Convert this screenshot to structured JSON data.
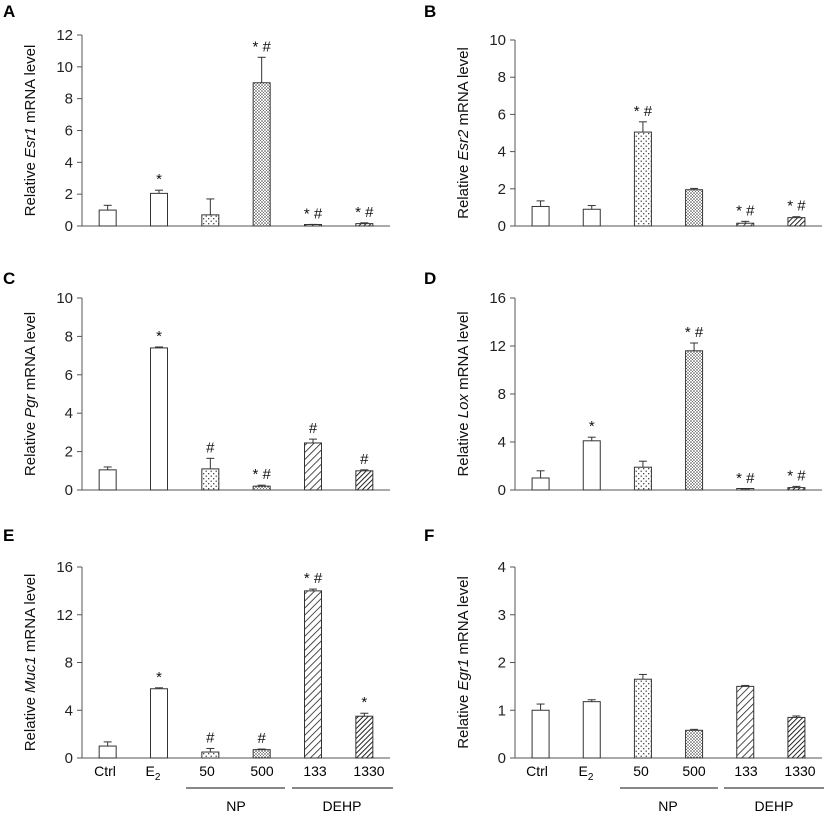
{
  "figure": {
    "group_labels": {
      "ctrl": "Ctrl",
      "e2_base": "E",
      "e2_sub": "2",
      "np": "NP",
      "dehp": "DEHP",
      "np_doses": [
        "50",
        "500"
      ],
      "dehp_doses": [
        "133",
        "1330"
      ]
    }
  },
  "chart_data": [
    {
      "panel": "A",
      "type": "bar",
      "ylabel_pre": "Relative ",
      "ylabel_gene": "Esr1",
      "ylabel_post": " mRNA level",
      "ylim": [
        0,
        12
      ],
      "yticks": [
        "0",
        "2",
        "4",
        "6",
        "8",
        "10",
        "12"
      ],
      "values": [
        1.0,
        2.05,
        0.7,
        9.0,
        0.05,
        0.15
      ],
      "errors": [
        0.3,
        0.2,
        1.0,
        1.6,
        0.05,
        0.05
      ],
      "annotations": [
        "",
        "*",
        "",
        "* #",
        "* #",
        "* #"
      ]
    },
    {
      "panel": "B",
      "type": "bar",
      "ylabel_pre": "Relative ",
      "ylabel_gene": "Esr2",
      "ylabel_post": " mRNA level",
      "ylim": [
        0,
        10
      ],
      "yticks": [
        "0",
        "2",
        "4",
        "6",
        "8",
        "10"
      ],
      "values": [
        1.05,
        0.9,
        5.05,
        1.95,
        0.15,
        0.45
      ],
      "errors": [
        0.3,
        0.2,
        0.55,
        0.07,
        0.1,
        0.05
      ],
      "annotations": [
        "",
        "",
        "* #",
        "",
        "* #",
        "* #"
      ]
    },
    {
      "panel": "C",
      "type": "bar",
      "ylabel_pre": "Relative ",
      "ylabel_gene": "Pgr",
      "ylabel_post": " mRNA level",
      "ylim": [
        0,
        10
      ],
      "yticks": [
        "0",
        "2",
        "4",
        "6",
        "8",
        "10"
      ],
      "values": [
        1.05,
        7.4,
        1.1,
        0.2,
        2.45,
        1.0
      ],
      "errors": [
        0.15,
        0.05,
        0.55,
        0.05,
        0.2,
        0.05
      ],
      "annotations": [
        "",
        "*",
        "#",
        "* #",
        "#",
        "#"
      ]
    },
    {
      "panel": "D",
      "type": "bar",
      "ylabel_pre": "Relative ",
      "ylabel_gene": "Lox",
      "ylabel_post": " mRNA level",
      "ylim": [
        0,
        16
      ],
      "yticks": [
        "0",
        "4",
        "8",
        "12",
        "16"
      ],
      "values": [
        1.0,
        4.1,
        1.9,
        11.6,
        0.05,
        0.2
      ],
      "errors": [
        0.6,
        0.3,
        0.5,
        0.65,
        0.05,
        0.1
      ],
      "annotations": [
        "",
        "*",
        "",
        "* #",
        "* #",
        "* #"
      ]
    },
    {
      "panel": "E",
      "type": "bar",
      "ylabel_pre": "Relative ",
      "ylabel_gene": "Muc1",
      "ylabel_post": " mRNA level",
      "ylim": [
        0,
        16
      ],
      "yticks": [
        "0",
        "4",
        "8",
        "12",
        "16"
      ],
      "values": [
        1.0,
        5.8,
        0.5,
        0.7,
        14.0,
        3.5
      ],
      "errors": [
        0.35,
        0.08,
        0.3,
        0.05,
        0.15,
        0.25
      ],
      "annotations": [
        "",
        "*",
        "#",
        "#",
        "* #",
        "*"
      ]
    },
    {
      "panel": "F",
      "type": "bar",
      "ylabel_pre": "Relative ",
      "ylabel_gene": "Egr1",
      "ylabel_post": " mRNA level",
      "ylim": [
        0,
        4
      ],
      "yticks": [
        "0",
        "1",
        "2",
        "3",
        "4"
      ],
      "values": [
        1.0,
        1.18,
        1.65,
        0.58,
        1.5,
        0.85
      ],
      "errors": [
        0.13,
        0.04,
        0.1,
        0.02,
        0.02,
        0.03
      ],
      "annotations": [
        "",
        "",
        "",
        "",
        "",
        ""
      ]
    }
  ]
}
